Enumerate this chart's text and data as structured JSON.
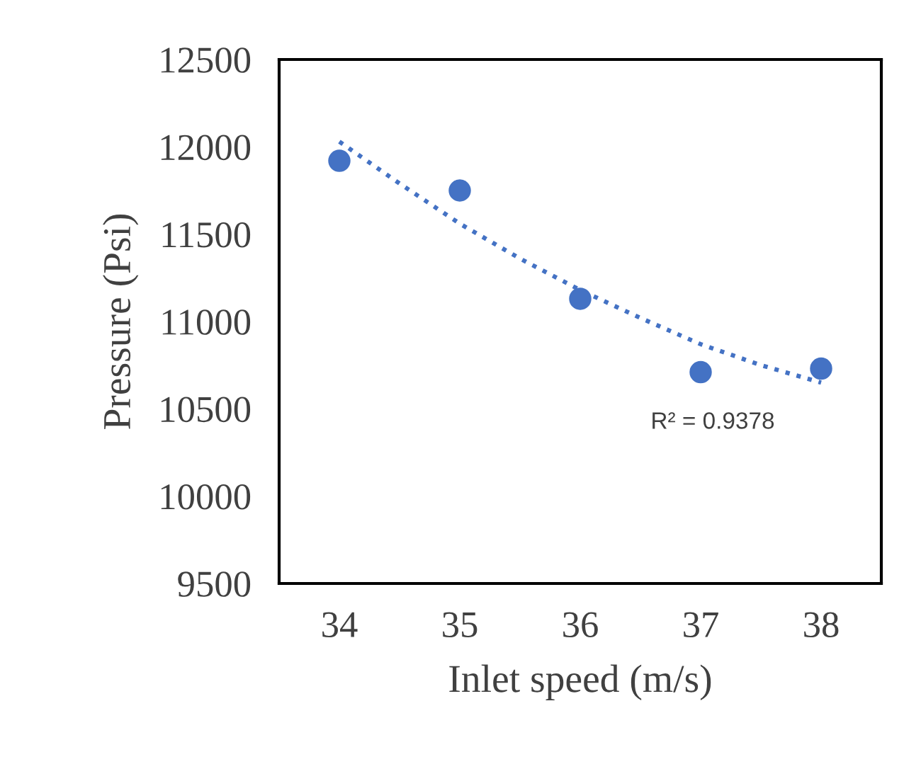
{
  "chart_data": {
    "type": "scatter",
    "xlabel": "Inlet speed (m/s)",
    "ylabel": "Pressure (Psi)",
    "x": [
      34,
      35,
      36,
      37,
      38
    ],
    "series": [
      {
        "color": "#4472c4",
        "marker": "circle",
        "values": [
          11920,
          11750,
          11130,
          10710,
          10730
        ]
      },
      {
        "type": "line",
        "color": "#4472c4",
        "line_style": "dotted",
        "x": [
          34,
          34.5,
          35,
          35.5,
          36,
          36.5,
          37,
          37.5,
          38
        ],
        "values": [
          12030,
          11790,
          11560,
          11360,
          11180,
          11020,
          10870,
          10750,
          10650
        ]
      }
    ],
    "annotations": [
      "R² = 0.9378"
    ],
    "xlim": [
      33.5,
      38.5
    ],
    "xticks": [
      34,
      35,
      36,
      37,
      38
    ],
    "ylim": [
      9500,
      12500
    ],
    "yticks": [
      9500,
      10000,
      10500,
      11000,
      11500,
      12000,
      12500
    ],
    "grid": false,
    "legend": false
  }
}
